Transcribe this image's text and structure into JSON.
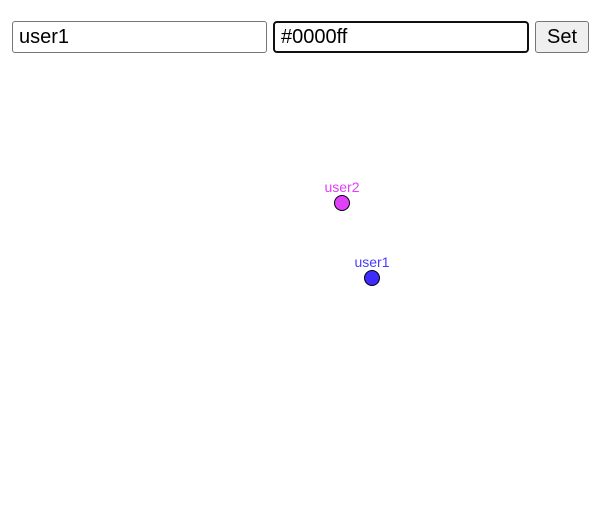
{
  "form": {
    "name_value": "user1",
    "color_value": "#0000ff",
    "set_label": "Set"
  },
  "users": [
    {
      "name": "user2",
      "color": "#e040fb",
      "label_color": "#e040fb"
    },
    {
      "name": "user1",
      "color": "#3d2bff",
      "label_color": "#4a3aff"
    }
  ]
}
